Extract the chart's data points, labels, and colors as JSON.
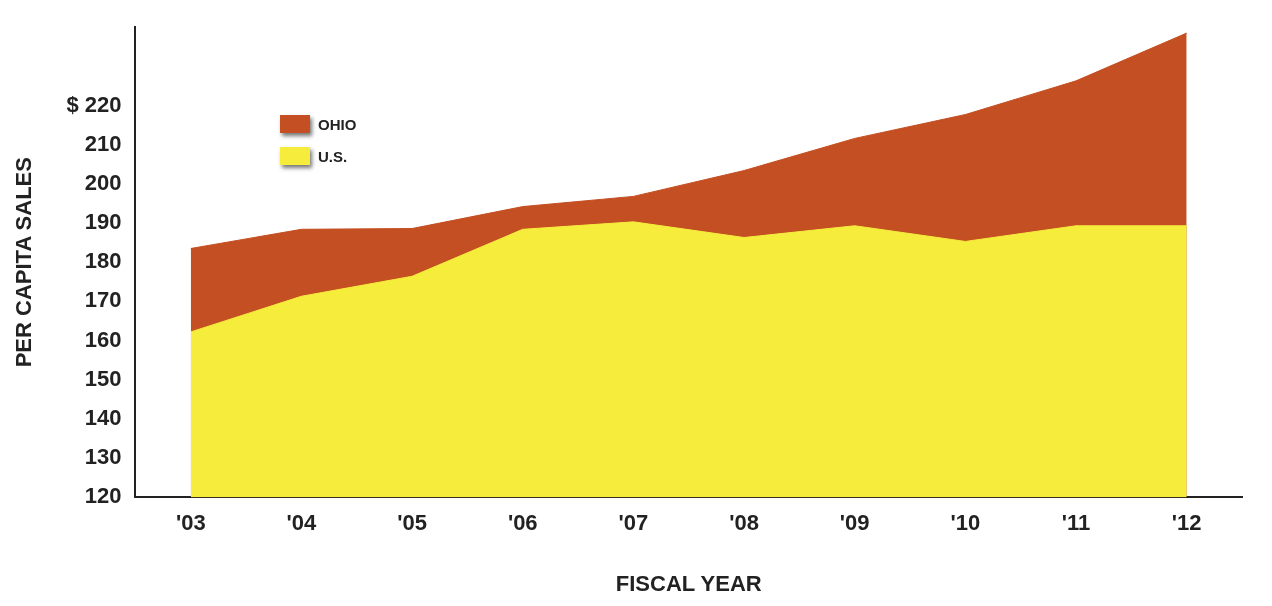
{
  "chart_data": {
    "type": "area",
    "xlabel": "FISCAL YEAR",
    "ylabel": "PER CAPITA SALES",
    "categories": [
      "'03",
      "'04",
      "'05",
      "'06",
      "'07",
      "'08",
      "'09",
      "'10",
      "'11",
      "'12"
    ],
    "series": [
      {
        "name": "OHIO",
        "color": "#c44f22",
        "values": [
          183.5,
          188.4,
          188.6,
          194.2,
          196.8,
          203.4,
          211.6,
          217.7,
          226.3,
          238.5
        ]
      },
      {
        "name": "U.S.",
        "color": "#f5ec3c",
        "values": [
          162.2,
          171.3,
          176.4,
          188.4,
          190.3,
          186.3,
          189.3,
          185.3,
          189.3,
          189.3
        ]
      }
    ],
    "ylim": [
      120,
      240
    ],
    "yticks": [
      120,
      130,
      140,
      150,
      160,
      170,
      180,
      190,
      200,
      210,
      {
        "value": 220,
        "label": "$ 220"
      }
    ],
    "grid": false,
    "legend": "top left"
  }
}
